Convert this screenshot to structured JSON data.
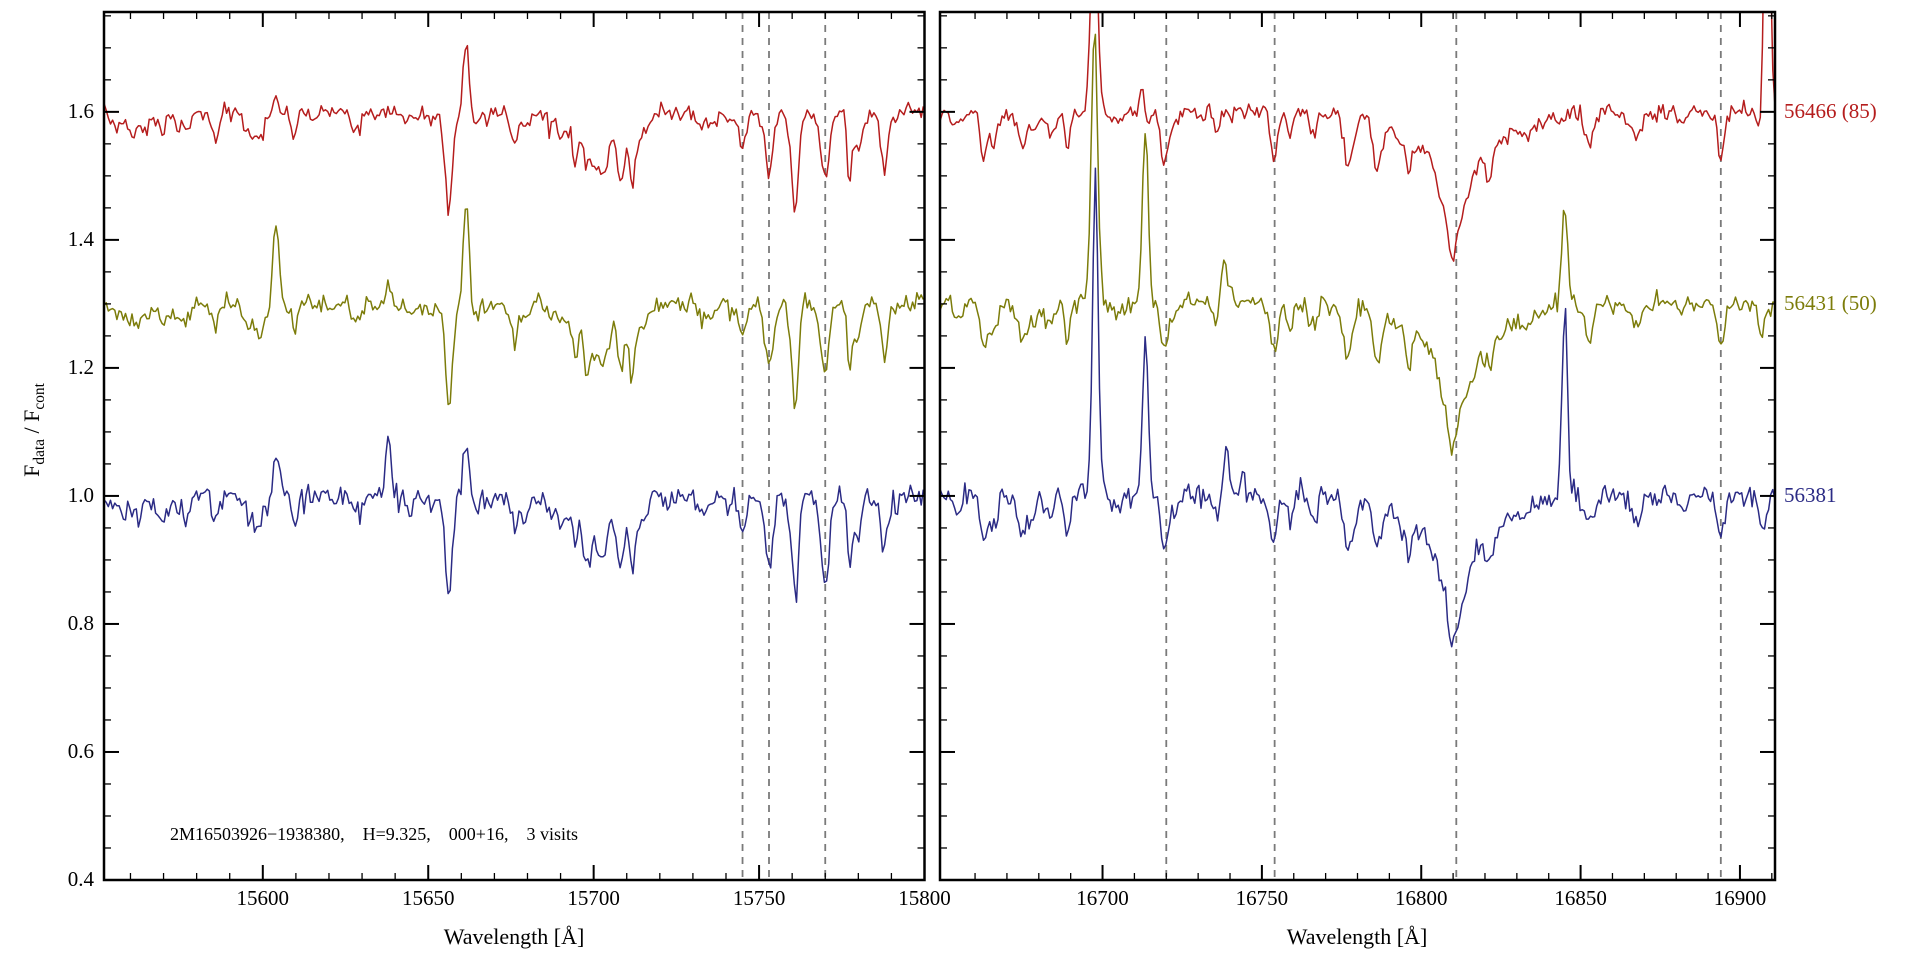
{
  "chart_data": {
    "type": "line",
    "title": "",
    "xlabel": "Wavelength [Å]",
    "ylabel_parts": {
      "base": "F",
      "sub1": "data",
      "mid": " / F",
      "sub2": "cont"
    },
    "annotation": "2M16503926−1938380,    H=9.325,    000+16,    3 visits",
    "ylim": [
      0.4,
      1.756
    ],
    "yticks": [
      0.4,
      0.6,
      0.8,
      1.0,
      1.2,
      1.4,
      1.6
    ],
    "y_minor_step": 0.05,
    "x_minor_step": 10,
    "grid": false,
    "legend_position": "right-outside",
    "panels": [
      {
        "xlim": [
          15552,
          15800
        ],
        "xticks": [
          15600,
          15650,
          15700,
          15750,
          15800
        ],
        "dashed_lines": [
          15745,
          15753,
          15770
        ],
        "random_lines": {
          "seed": 11,
          "count": 55,
          "min_depth": 0.008,
          "max_depth": 0.075,
          "min_sigma": 0.5,
          "max_sigma": 1.5
        },
        "shared_features": [
          {
            "c": 15560,
            "a": -0.028,
            "s": 5
          },
          {
            "c": 15701,
            "a": -0.045,
            "s": 5
          },
          {
            "c": 15701,
            "a": -0.03,
            "s": 1.5
          },
          {
            "c": 15745,
            "a": -0.05,
            "s": 1.1
          },
          {
            "c": 15753,
            "a": -0.095,
            "s": 1.2
          },
          {
            "c": 15770,
            "a": -0.105,
            "s": 1.2
          },
          {
            "c": 15761,
            "a": -0.05,
            "s": 1.0
          },
          {
            "c": 15780,
            "a": -0.05,
            "s": 1.0
          },
          {
            "c": 15788,
            "a": -0.055,
            "s": 1.0
          }
        ]
      },
      {
        "xlim": [
          16649,
          16911
        ],
        "xticks": [
          16700,
          16750,
          16800,
          16850,
          16900
        ],
        "dashed_lines": [
          16720,
          16754,
          16811,
          16894
        ],
        "random_lines": {
          "seed": 22,
          "count": 48,
          "min_depth": 0.008,
          "max_depth": 0.07,
          "min_sigma": 0.5,
          "max_sigma": 1.5
        },
        "shared_features": [
          {
            "c": 16811,
            "a": -0.075,
            "s": 14
          },
          {
            "c": 16811,
            "a": -0.095,
            "s": 4
          },
          {
            "c": 16720,
            "a": -0.05,
            "s": 1.1
          },
          {
            "c": 16754,
            "a": -0.06,
            "s": 1.1
          },
          {
            "c": 16894,
            "a": -0.065,
            "s": 1.1
          },
          {
            "c": 16675,
            "a": -0.055,
            "s": 1.0
          },
          {
            "c": 16663,
            "a": -0.04,
            "s": 0.9
          }
        ]
      }
    ],
    "series": [
      {
        "name": "56466 (85)",
        "color": "#b51d1d",
        "offset": 1.6,
        "noise": 0.0065,
        "seed": 101,
        "features": [
          [
            {
              "c": 15661.5,
              "a": 0.115,
              "s": 0.9
            },
            {
              "c": 15604,
              "a": 0.02,
              "s": 0.8
            }
          ],
          [
            {
              "c": 16697.5,
              "a": 0.32,
              "s": 1.1
            },
            {
              "c": 16713,
              "a": 0.07,
              "s": 0.9
            },
            {
              "c": 16908.5,
              "a": 0.5,
              "s": 0.9
            }
          ]
        ]
      },
      {
        "name": "56431 (50)",
        "color": "#7c7c0a",
        "offset": 1.3,
        "noise": 0.0075,
        "seed": 202,
        "features": [
          [
            {
              "c": 15604,
              "a": 0.13,
              "s": 0.9
            },
            {
              "c": 15638,
              "a": 0.035,
              "s": 0.8
            },
            {
              "c": 15661.5,
              "a": 0.165,
              "s": 0.9
            }
          ],
          [
            {
              "c": 16697.5,
              "a": 0.44,
              "s": 1.0
            },
            {
              "c": 16713.5,
              "a": 0.33,
              "s": 0.9
            },
            {
              "c": 16738,
              "a": 0.06,
              "s": 1.4
            },
            {
              "c": 16845,
              "a": 0.16,
              "s": 0.9
            }
          ]
        ]
      },
      {
        "name": "56381",
        "color": "#2b2b85",
        "offset": 1.0,
        "noise": 0.0095,
        "seed": 303,
        "features": [
          [
            {
              "c": 15604,
              "a": 0.075,
              "s": 0.9
            },
            {
              "c": 15638,
              "a": 0.085,
              "s": 0.9
            },
            {
              "c": 15661.5,
              "a": 0.09,
              "s": 0.9
            },
            {
              "c": 15770,
              "a": -0.03,
              "s": 1.1
            },
            {
              "c": 15753,
              "a": -0.015,
              "s": 1.1
            }
          ],
          [
            {
              "c": 16697.8,
              "a": 0.5,
              "s": 0.9
            },
            {
              "c": 16713.5,
              "a": 0.3,
              "s": 0.9
            },
            {
              "c": 16739,
              "a": 0.075,
              "s": 1.0
            },
            {
              "c": 16744,
              "a": 0.04,
              "s": 0.8
            },
            {
              "c": 16845,
              "a": 0.28,
              "s": 0.9
            }
          ]
        ]
      }
    ],
    "dashed_line_color": "#7a7a7a",
    "axis_color": "#000000"
  }
}
